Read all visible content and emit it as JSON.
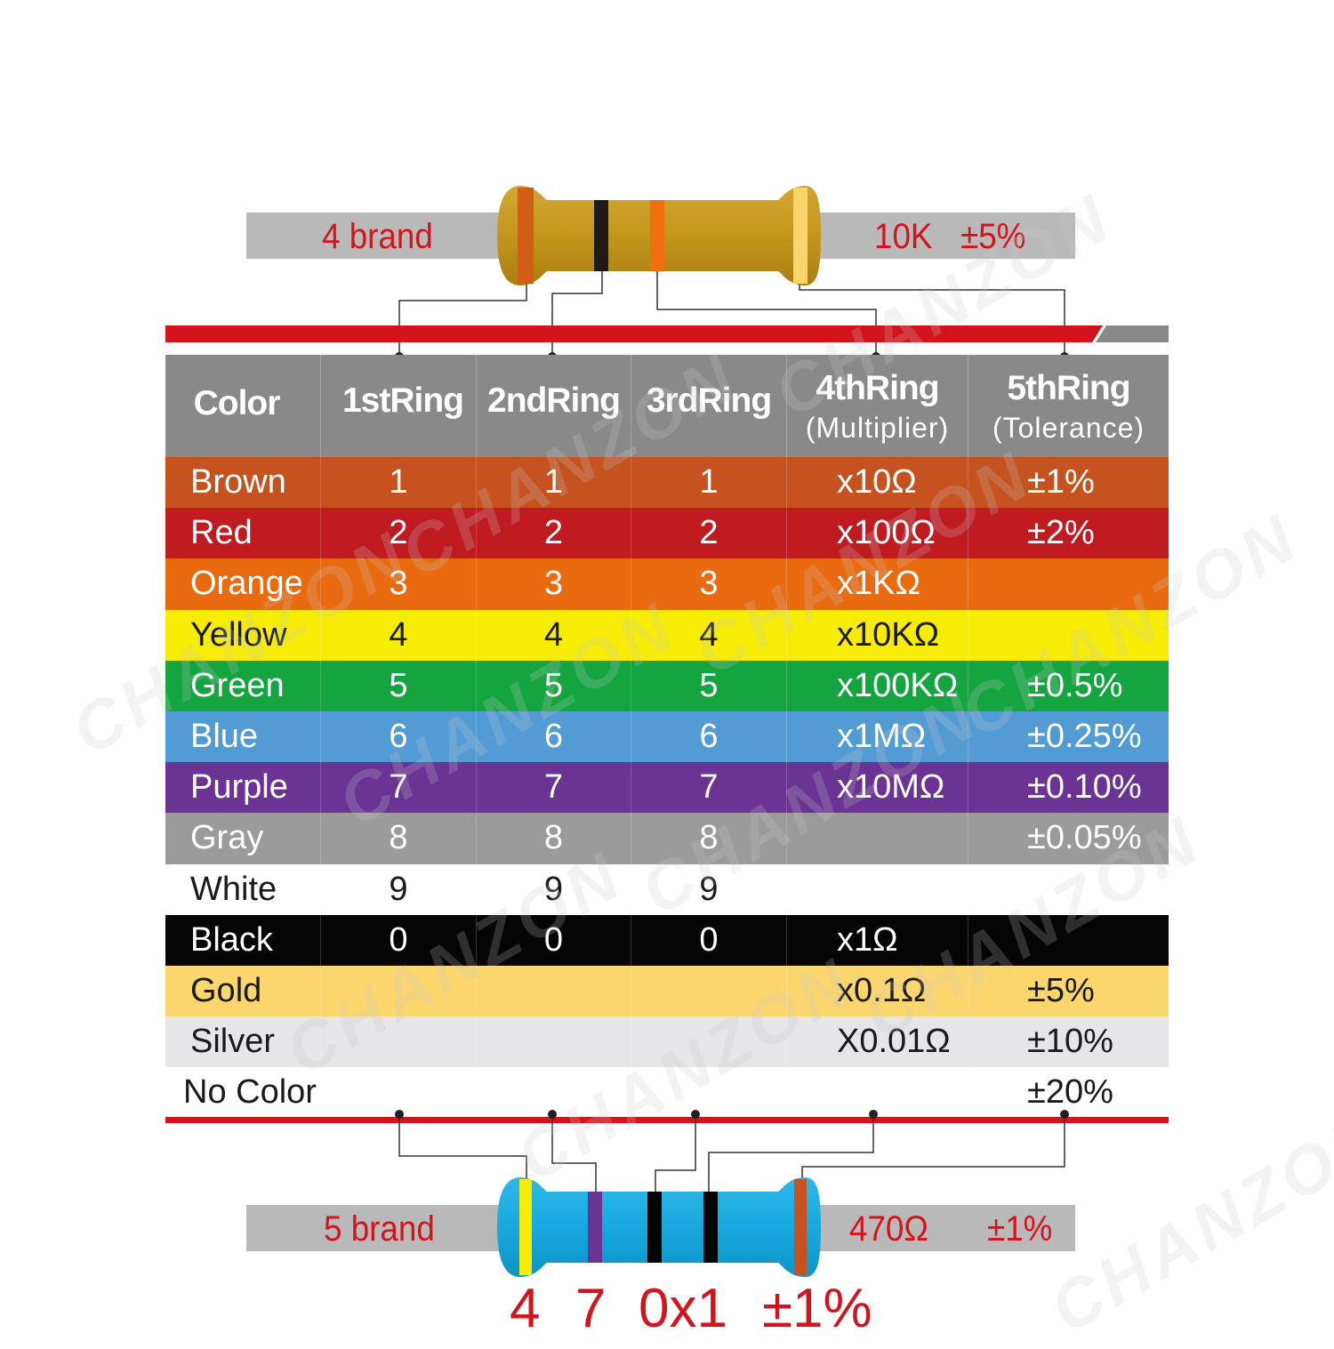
{
  "top_resistor": {
    "left_label": "4 brand",
    "right_label": "10K",
    "right_tolerance": "±5%",
    "body_color": "#c4961a",
    "bands": [
      "#d05e14",
      "#1f1a17",
      "#f07010",
      "#fbd56a"
    ]
  },
  "table": {
    "headers": [
      {
        "main": "Color",
        "sub": ""
      },
      {
        "main": "1stRing",
        "sub": ""
      },
      {
        "main": "2ndRing",
        "sub": ""
      },
      {
        "main": "3rdRing",
        "sub": ""
      },
      {
        "main": "4thRing",
        "sub": "(Multiplier)"
      },
      {
        "main": "5thRing",
        "sub": "(Tolerance)"
      }
    ],
    "rows": [
      {
        "bg": "#c5521f",
        "fg": "#ffffff",
        "cells": [
          "Brown",
          "1",
          "1",
          "1",
          "x10Ω",
          "±1%"
        ]
      },
      {
        "bg": "#c11b22",
        "fg": "#ffffff",
        "cells": [
          "Red",
          "2",
          "2",
          "2",
          "x100Ω",
          "±2%"
        ]
      },
      {
        "bg": "#ea6a0f",
        "fg": "#ffffff",
        "cells": [
          "Orange",
          "3",
          "3",
          "3",
          "x1KΩ",
          ""
        ]
      },
      {
        "bg": "#f7ec05",
        "fg": "#1a1a1a",
        "cells": [
          "Yellow",
          "4",
          "4",
          "4",
          "x10KΩ",
          ""
        ]
      },
      {
        "bg": "#15a540",
        "fg": "#ffffff",
        "cells": [
          "Green",
          "5",
          "5",
          "5",
          "x100KΩ",
          "±0.5%"
        ]
      },
      {
        "bg": "#539bd5",
        "fg": "#ffffff",
        "cells": [
          "Blue",
          "6",
          "6",
          "6",
          "x1MΩ",
          "±0.25%"
        ]
      },
      {
        "bg": "#6a3394",
        "fg": "#ffffff",
        "cells": [
          "Purple",
          "7",
          "7",
          "7",
          "x10MΩ",
          "±0.10%"
        ]
      },
      {
        "bg": "#9b9b9b",
        "fg": "#ffffff",
        "cells": [
          "Gray",
          "8",
          "8",
          "8",
          "",
          "±0.05%"
        ]
      },
      {
        "bg": "#ffffff",
        "fg": "#1a1a1a",
        "cells": [
          "White",
          "9",
          "9",
          "9",
          "",
          ""
        ]
      },
      {
        "bg": "#050505",
        "fg": "#ffffff",
        "cells": [
          "Black",
          "0",
          "0",
          "0",
          "x1Ω",
          ""
        ]
      },
      {
        "bg": "#fbd66c",
        "fg": "#1a1a1a",
        "cells": [
          "Gold",
          "",
          "",
          "",
          "x0.1Ω",
          "±5%"
        ]
      },
      {
        "bg": "#e6e6e8",
        "fg": "#1a1a1a",
        "cells": [
          "Silver",
          "",
          "",
          "",
          "X0.01Ω",
          "±10%"
        ]
      },
      {
        "bg": "#ffffff",
        "fg": "#1a1a1a",
        "cells": [
          "No Color",
          "",
          "",
          "",
          "",
          "±20%"
        ]
      }
    ]
  },
  "bottom_resistor": {
    "left_label": "5 brand",
    "right_label": "470Ω",
    "right_tolerance": "±1%",
    "body_color": "#16a9df",
    "bands": [
      "#f7ec05",
      "#6a3394",
      "#050505",
      "#050505",
      "#c5521f"
    ],
    "code": [
      "4",
      "7",
      "0x1",
      "±1%"
    ]
  },
  "watermark": "CHANZON",
  "colors": {
    "accent_red": "#d4141c",
    "header_gray": "#898989",
    "lead_gray": "#b9b9b9"
  }
}
